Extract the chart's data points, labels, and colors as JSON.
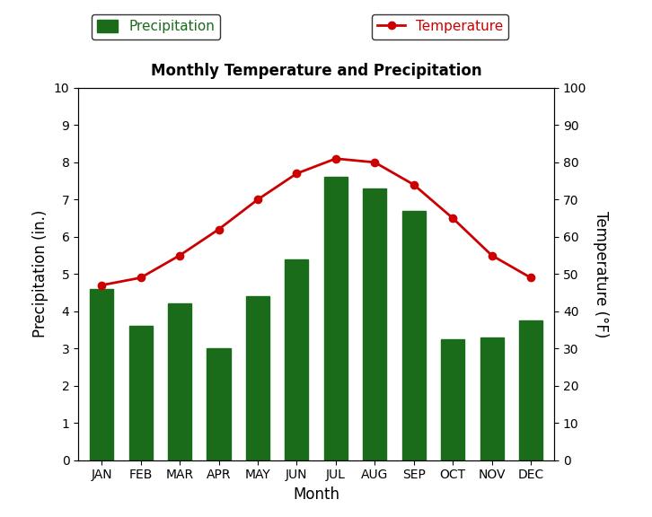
{
  "months": [
    "JAN",
    "FEB",
    "MAR",
    "APR",
    "MAY",
    "JUN",
    "JUL",
    "AUG",
    "SEP",
    "OCT",
    "NOV",
    "DEC"
  ],
  "precipitation": [
    4.6,
    3.6,
    4.2,
    3.0,
    4.4,
    5.4,
    7.6,
    7.3,
    6.7,
    3.25,
    3.3,
    3.75
  ],
  "temperature": [
    47,
    49,
    55,
    62,
    70,
    77,
    81,
    80,
    74,
    65,
    55,
    49
  ],
  "bar_color": "#1a6b1a",
  "line_color": "#cc0000",
  "title": "Monthly Temperature and Precipitation",
  "xlabel": "Month",
  "ylabel_left": "Precipitation (in.)",
  "ylabel_right": "Temperature (°F)",
  "ylim_left": [
    0,
    10
  ],
  "ylim_right": [
    0,
    100
  ],
  "yticks_left": [
    0,
    1,
    2,
    3,
    4,
    5,
    6,
    7,
    8,
    9,
    10
  ],
  "yticks_right": [
    0,
    10,
    20,
    30,
    40,
    50,
    60,
    70,
    80,
    90,
    100
  ],
  "background_color": "#ffffff",
  "legend_precip_label": "Precipitation",
  "legend_temp_label": "Temperature",
  "title_fontsize": 12,
  "axis_label_fontsize": 12,
  "tick_fontsize": 10,
  "legend_fontsize": 11
}
